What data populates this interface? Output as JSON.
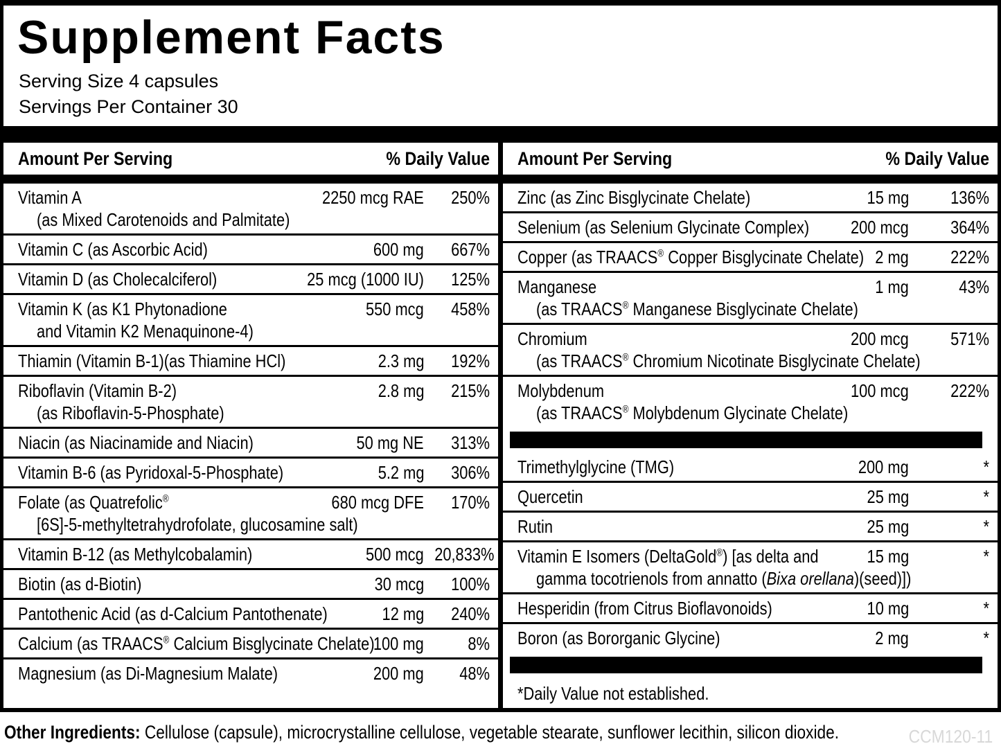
{
  "page": {
    "title": "Supplement Facts",
    "serving_size": "Serving Size 4 capsules",
    "servings_per_container": "Servings Per Container 30",
    "header": {
      "amount": "Amount Per Serving",
      "dv": "% Daily Value"
    },
    "other_ingredients_label": "Other Ingredients:",
    "other_ingredients_text": " Cellulose (capsule), microcrystalline cellulose, vegetable stearate, sunflower lecithin, silicon dioxide.",
    "product_code": "CCM120-11",
    "colors": {
      "ink": "#000000",
      "paper": "#ffffff",
      "code_gray": "#d8d8d8"
    }
  },
  "columns": [
    {
      "items": [
        {
          "type": "item",
          "name": "Vitamin A",
          "name2": "(as Mixed Carotenoids and Palmitate)",
          "amount": "2250 mcg RAE",
          "dv": "250%"
        },
        {
          "type": "item",
          "name": "Vitamin C (as Ascorbic Acid)",
          "amount": "600 mg",
          "dv": "667%"
        },
        {
          "type": "item",
          "name": "Vitamin D (as Cholecalciferol)",
          "amount": "25 mcg (1000 IU)",
          "dv": "125%"
        },
        {
          "type": "item",
          "name": "Vitamin K (as K1 Phytonadione",
          "name2": "and Vitamin K2 Menaquinone-4)",
          "amount": "550 mcg",
          "dv": "458%"
        },
        {
          "type": "item",
          "name": "Thiamin (Vitamin B-1)(as Thiamine HCl)",
          "amount": "2.3 mg",
          "dv": "192%"
        },
        {
          "type": "item",
          "name": "Riboflavin (Vitamin B-2)",
          "name2": "(as Riboflavin-5-Phosphate)",
          "amount": "2.8 mg",
          "dv": "215%"
        },
        {
          "type": "item",
          "name": "Niacin (as Niacinamide and Niacin)",
          "amount": "50 mg NE",
          "dv": "313%"
        },
        {
          "type": "item",
          "name": "Vitamin B-6 (as Pyridoxal-5-Phosphate)",
          "amount": "5.2 mg",
          "dv": "306%"
        },
        {
          "type": "item",
          "name": "Folate (as Quatrefolic®",
          "name2": "[6S]-5-methyltetrahydrofolate, glucosamine salt)",
          "amount": "680 mcg DFE",
          "dv": "170%"
        },
        {
          "type": "item",
          "name": "Vitamin B-12 (as Methylcobalamin)",
          "amount": "500 mcg",
          "dv": "20,833%"
        },
        {
          "type": "item",
          "name": "Biotin (as d-Biotin)",
          "amount": "30 mcg",
          "dv": "100%"
        },
        {
          "type": "item",
          "name": "Pantothenic Acid (as d-Calcium Pantothenate)",
          "amount": "12 mg",
          "dv": "240%"
        },
        {
          "type": "item",
          "name": "Calcium (as TRAACS® Calcium Bisglycinate Chelate)",
          "amount": "100 mg",
          "dv": "8%"
        },
        {
          "type": "item",
          "name": "Magnesium (as Di-Magnesium Malate)",
          "amount": "200 mg",
          "dv": "48%"
        }
      ]
    },
    {
      "items": [
        {
          "type": "item",
          "name": "Zinc (as Zinc Bisglycinate Chelate)",
          "amount": "15 mg",
          "dv": "136%"
        },
        {
          "type": "item",
          "name": "Selenium (as Selenium Glycinate Complex)",
          "amount": "200 mcg",
          "dv": "364%"
        },
        {
          "type": "item",
          "name": "Copper (as TRAACS® Copper Bisglycinate Chelate)",
          "amount": "2 mg",
          "dv": "222%"
        },
        {
          "type": "item",
          "name": "Manganese",
          "name2": "(as TRAACS® Manganese Bisglycinate Chelate)",
          "amount": "1 mg",
          "dv": "43%"
        },
        {
          "type": "item",
          "name": "Chromium",
          "name2": "(as TRAACS® Chromium Nicotinate Bisglycinate Chelate)",
          "amount": "200 mcg",
          "dv": "571%"
        },
        {
          "type": "item",
          "name": "Molybdenum",
          "name2": "(as TRAACS® Molybdenum Glycinate Chelate)",
          "amount": "100 mcg",
          "dv": "222%"
        },
        {
          "type": "bar"
        },
        {
          "type": "item",
          "name": "Trimethylglycine (TMG)",
          "amount": "200 mg",
          "dv": "*"
        },
        {
          "type": "item",
          "name": "Quercetin",
          "amount": "25 mg",
          "dv": "*"
        },
        {
          "type": "item",
          "name": "Rutin",
          "amount": "25 mg",
          "dv": "*"
        },
        {
          "type": "item",
          "name": "Vitamin E Isomers (DeltaGold®) [as delta and",
          "name2": [
            "gamma tocotrienols from annatto (",
            {
              "i": "Bixa orellana"
            },
            ")(seed)])"
          ],
          "amount": "15 mg",
          "dv": "*"
        },
        {
          "type": "item",
          "name": "Hesperidin (from Citrus Bioflavonoids)",
          "amount": "10 mg",
          "dv": "*"
        },
        {
          "type": "item",
          "name": "Boron (as Bororganic Glycine)",
          "amount": "2 mg",
          "dv": "*"
        },
        {
          "type": "bar"
        },
        {
          "type": "note",
          "text": "*Daily Value not established."
        }
      ]
    }
  ]
}
